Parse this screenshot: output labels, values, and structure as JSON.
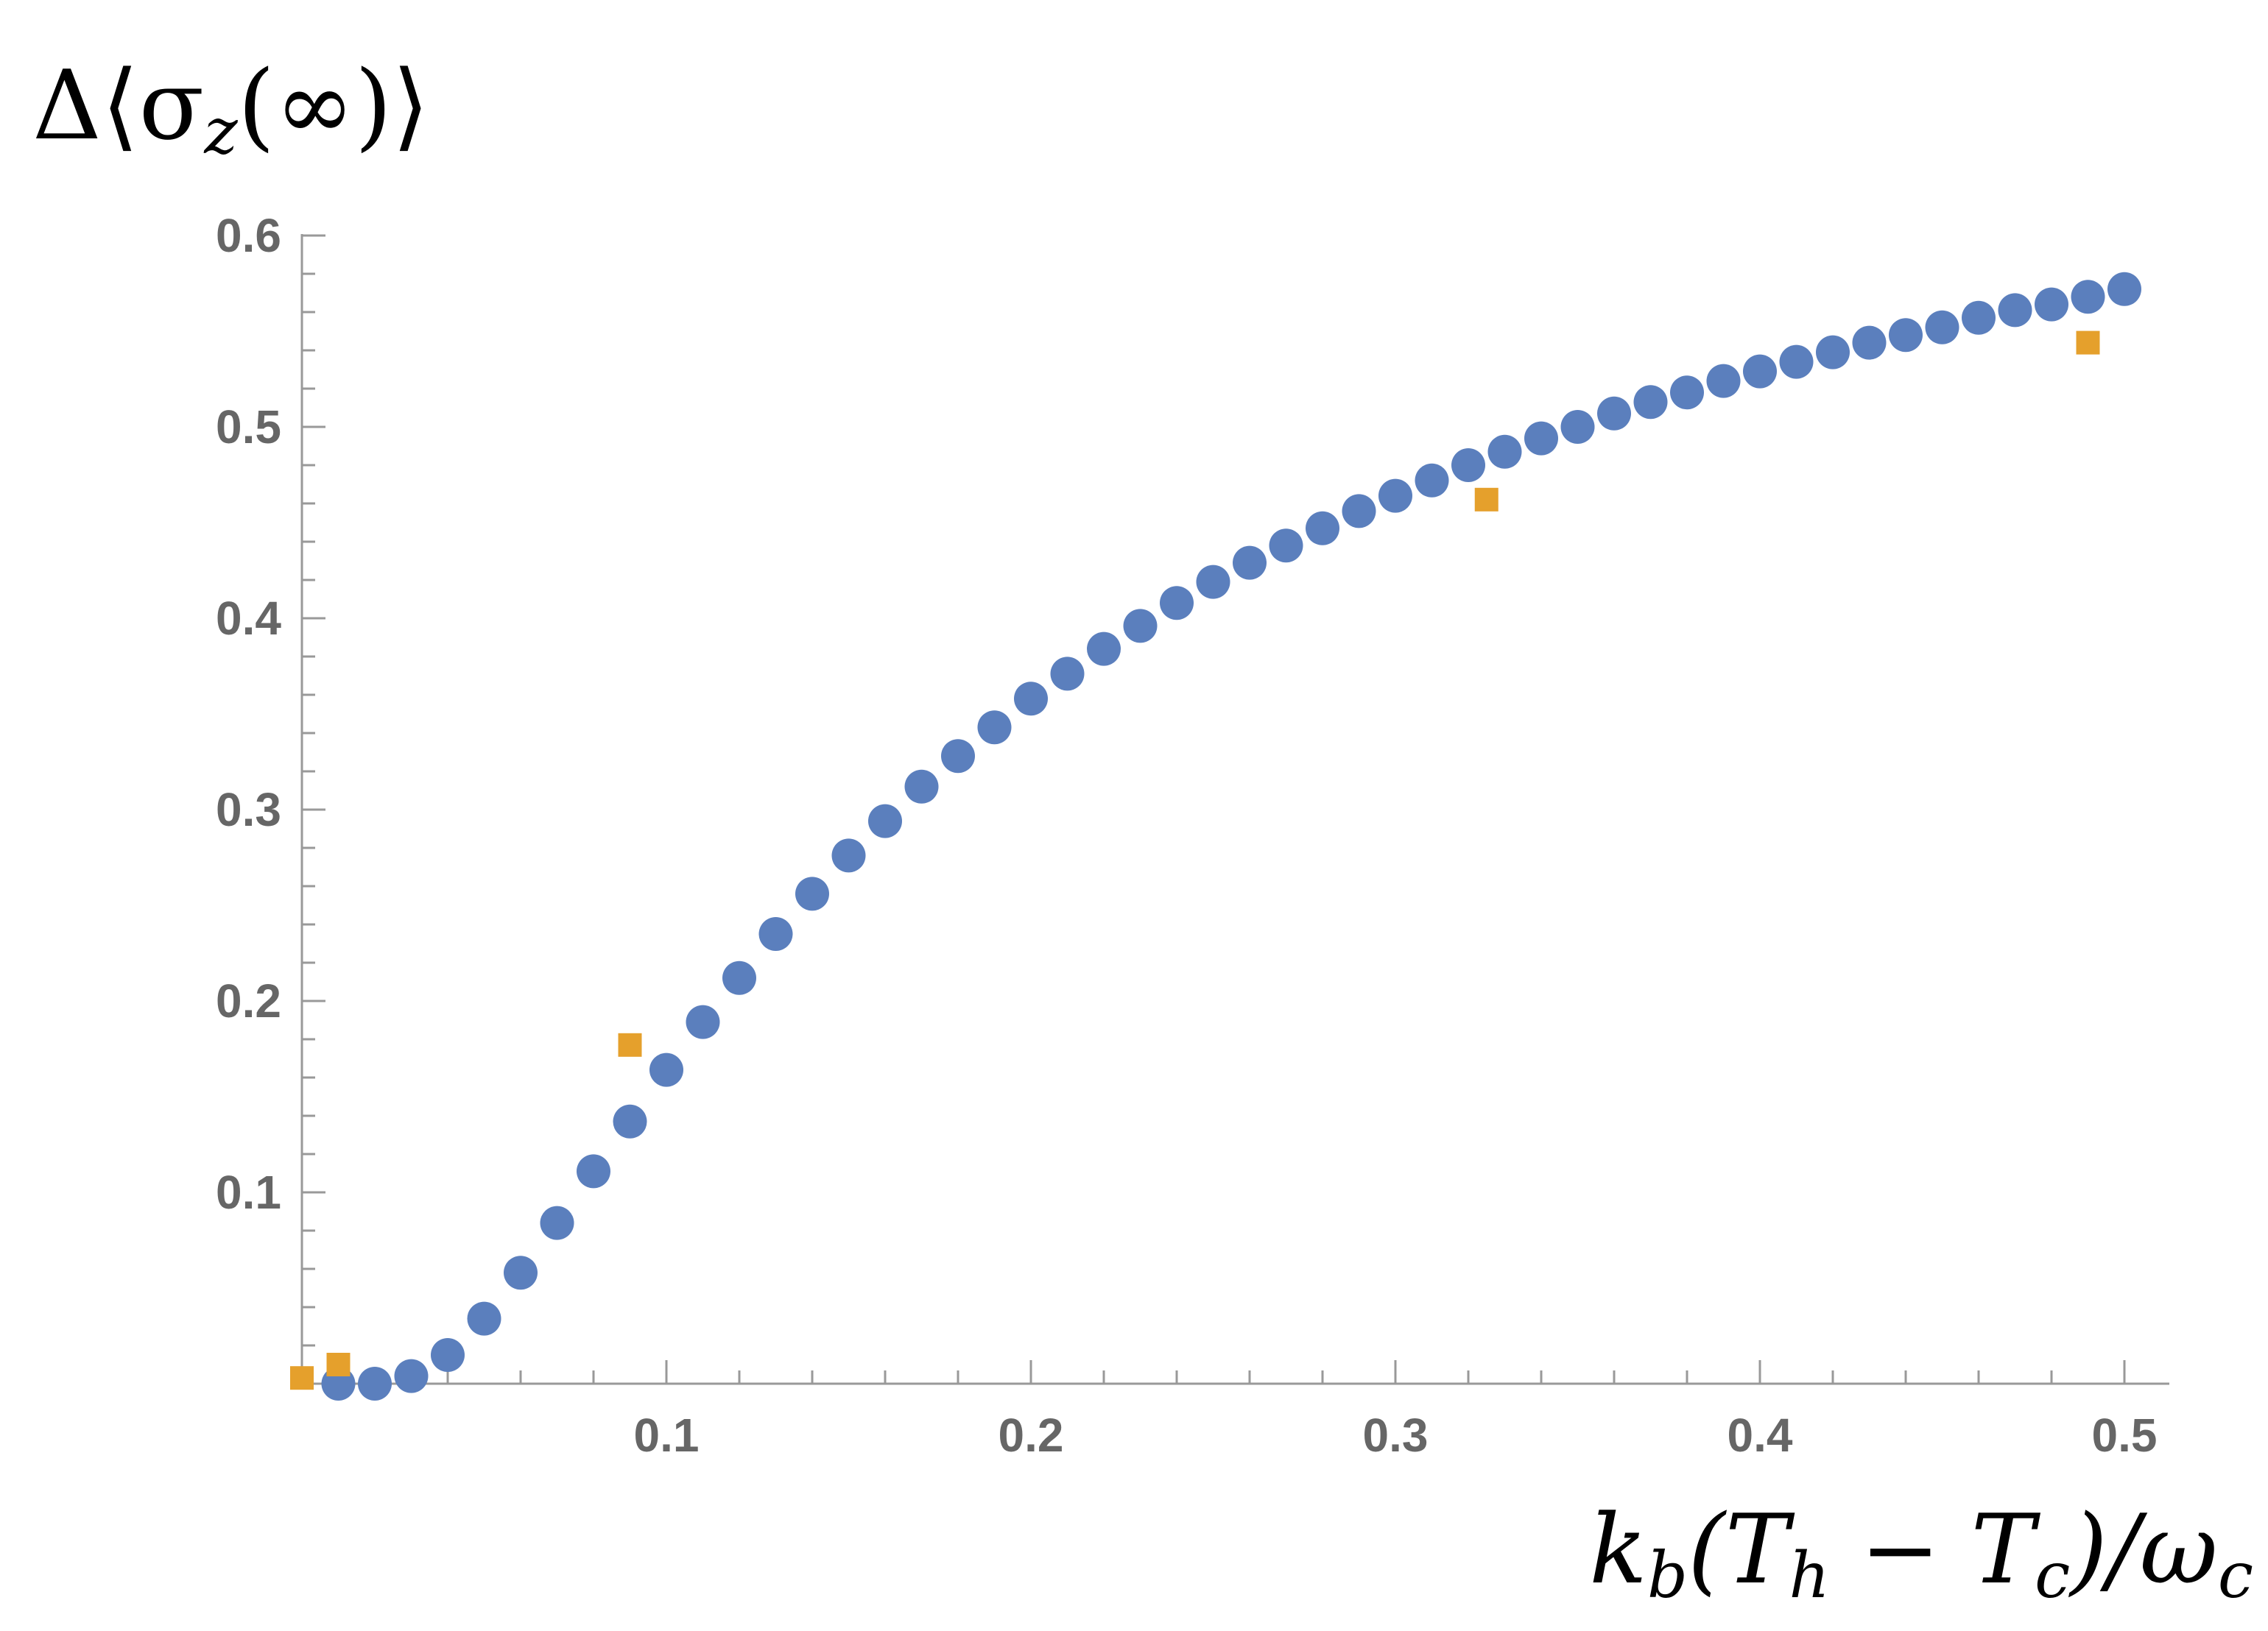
{
  "chart_data": {
    "type": "scatter",
    "title": "",
    "ylabel": "Δ⟨σz(∞)⟩",
    "ylabel_parts": [
      "Δ⟨σ",
      "z",
      "(∞)⟩"
    ],
    "xlabel": "kb(Th − Tc)/ωc",
    "xlabel_parts": [
      "k",
      "b",
      "(T",
      "h",
      " − T",
      "c",
      ")/ω",
      "c"
    ],
    "xlim": [
      0,
      0.51
    ],
    "ylim": [
      0,
      0.6
    ],
    "x_ticks": [
      "0.1",
      "0.2",
      "0.3",
      "0.4",
      "0.5"
    ],
    "y_ticks": [
      "0.1",
      "0.2",
      "0.3",
      "0.4",
      "0.5",
      "0.6"
    ],
    "grid": false,
    "legend": "none",
    "series": [
      {
        "marker": "circle",
        "color": "#5b7fbd",
        "x": [
          0.01,
          0.02,
          0.03,
          0.04,
          0.05,
          0.06,
          0.07,
          0.08,
          0.09,
          0.1,
          0.11,
          0.12,
          0.13,
          0.14,
          0.15,
          0.16,
          0.17,
          0.18,
          0.19,
          0.2,
          0.21,
          0.22,
          0.23,
          0.24,
          0.25,
          0.26,
          0.27,
          0.28,
          0.29,
          0.3,
          0.31,
          0.32,
          0.33,
          0.34,
          0.35,
          0.36,
          0.37,
          0.38,
          0.39,
          0.4,
          0.41,
          0.42,
          0.43,
          0.44,
          0.45,
          0.46,
          0.47,
          0.48,
          0.49,
          0.5
        ],
        "y": [
          0.0,
          0.0,
          0.004,
          0.015,
          0.034,
          0.058,
          0.084,
          0.111,
          0.137,
          0.164,
          0.189,
          0.212,
          0.235,
          0.256,
          0.276,
          0.294,
          0.312,
          0.328,
          0.343,
          0.358,
          0.371,
          0.384,
          0.396,
          0.408,
          0.419,
          0.429,
          0.438,
          0.447,
          0.456,
          0.464,
          0.472,
          0.48,
          0.487,
          0.494,
          0.5,
          0.507,
          0.513,
          0.518,
          0.524,
          0.529,
          0.534,
          0.539,
          0.544,
          0.548,
          0.552,
          0.557,
          0.561,
          0.564,
          0.568,
          0.572
        ]
      },
      {
        "marker": "square",
        "color": "#e5a02c",
        "x": [
          0.0,
          0.01,
          0.09,
          0.325,
          0.49
        ],
        "y": [
          0.003,
          0.01,
          0.177,
          0.462,
          0.544
        ]
      }
    ]
  }
}
